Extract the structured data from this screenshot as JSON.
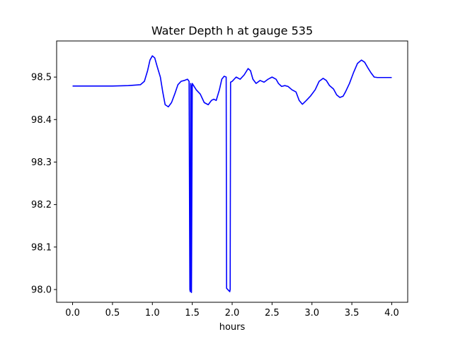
{
  "chart_data": {
    "type": "line",
    "title": "Water Depth h at gauge 535",
    "xlabel": "hours",
    "ylabel": "",
    "xlim": [
      -0.2,
      4.2
    ],
    "ylim": [
      97.97,
      98.585
    ],
    "xticks": [
      0.0,
      0.5,
      1.0,
      1.5,
      2.0,
      2.5,
      3.0,
      3.5,
      4.0
    ],
    "xtick_labels": [
      "0.0",
      "0.5",
      "1.0",
      "1.5",
      "2.0",
      "2.5",
      "3.0",
      "3.5",
      "4.0"
    ],
    "yticks": [
      98.0,
      98.1,
      98.2,
      98.3,
      98.4,
      98.5
    ],
    "ytick_labels": [
      "98.0",
      "98.1",
      "98.2",
      "98.3",
      "98.4",
      "98.5"
    ],
    "grid": false,
    "line_color": "#0000ff",
    "series": [
      {
        "x": [
          0.0,
          0.5,
          0.7,
          0.85,
          0.9,
          0.94,
          0.97,
          1.0,
          1.03,
          1.06,
          1.1,
          1.13,
          1.16,
          1.2,
          1.24,
          1.28,
          1.32,
          1.36,
          1.4,
          1.44,
          1.46,
          1.47,
          1.475,
          1.48,
          1.485,
          1.49,
          1.5,
          1.55,
          1.6,
          1.65,
          1.7,
          1.74,
          1.77,
          1.8,
          1.84,
          1.87,
          1.9,
          1.925,
          1.93,
          1.97,
          1.975,
          1.98,
          2.0,
          2.05,
          2.1,
          2.15,
          2.2,
          2.23,
          2.26,
          2.3,
          2.35,
          2.4,
          2.45,
          2.5,
          2.55,
          2.58,
          2.62,
          2.66,
          2.7,
          2.75,
          2.8,
          2.84,
          2.88,
          2.93,
          2.98,
          3.04,
          3.09,
          3.14,
          3.18,
          3.22,
          3.27,
          3.31,
          3.35,
          3.39,
          3.42,
          3.47,
          3.52,
          3.57,
          3.62,
          3.66,
          3.7,
          3.74,
          3.78,
          3.82,
          3.86,
          3.9,
          3.95,
          4.0
        ],
        "y": [
          98.479,
          98.479,
          98.48,
          98.482,
          98.49,
          98.515,
          98.54,
          98.55,
          98.545,
          98.525,
          98.5,
          98.465,
          98.435,
          98.43,
          98.44,
          98.46,
          98.482,
          98.49,
          98.492,
          98.495,
          98.49,
          98.0,
          97.995,
          98.485,
          98.48,
          97.993,
          98.485,
          98.47,
          98.46,
          98.44,
          98.435,
          98.445,
          98.448,
          98.445,
          98.47,
          98.495,
          98.502,
          98.5,
          98.003,
          97.995,
          98.0,
          98.488,
          98.49,
          98.5,
          98.495,
          98.505,
          98.52,
          98.515,
          98.495,
          98.485,
          98.492,
          98.488,
          98.495,
          98.5,
          98.495,
          98.485,
          98.478,
          98.48,
          98.478,
          98.47,
          98.465,
          98.445,
          98.436,
          98.445,
          98.455,
          98.47,
          98.49,
          98.497,
          98.492,
          98.48,
          98.472,
          98.458,
          98.452,
          98.455,
          98.465,
          98.485,
          98.51,
          98.532,
          98.54,
          98.535,
          98.522,
          98.51,
          98.5,
          98.499,
          98.499,
          98.499,
          98.499,
          98.499
        ]
      }
    ]
  }
}
